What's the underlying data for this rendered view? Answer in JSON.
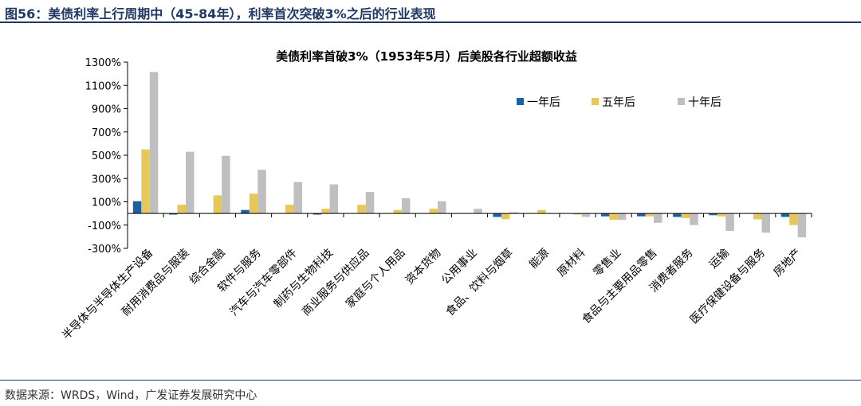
{
  "figure": {
    "title": "图56：美债利率上行周期中（45-84年），利率首次突破3%之后的行业表现",
    "source": "数据来源：WRDS，Wind，广发证券发展研究中心"
  },
  "chart_data": {
    "type": "bar",
    "title": "美债利率首破3%（1953年5月）后美股各行业超额收益",
    "xlabel": "",
    "ylabel": "",
    "ylim": [
      -300,
      1300
    ],
    "yticks": [
      1300,
      1100,
      900,
      700,
      500,
      300,
      100,
      -100,
      -300
    ],
    "ytick_labels": [
      "1300%",
      "1100%",
      "900%",
      "700%",
      "500%",
      "300%",
      "100%",
      "-100%",
      "-300%"
    ],
    "legend_position": "top-right",
    "grid": false,
    "categories": [
      "半导体与半导体生产设备",
      "耐用消费品与服装",
      "综合金融",
      "软件与服务",
      "汽车与汽车零部件",
      "制药与生物科技",
      "商业服务与供应品",
      "家庭与个人用品",
      "资本货物",
      "公用事业",
      "食品、饮料与烟草",
      "能源",
      "原材料",
      "零售业",
      "食品与主要用品零售",
      "消费者服务",
      "运输",
      "医疗保健设备与服务",
      "房地产"
    ],
    "series": [
      {
        "name": "一年后",
        "color": "#1f5fa5",
        "values": [
          105,
          -10,
          0,
          30,
          0,
          -10,
          0,
          0,
          0,
          0,
          -30,
          0,
          0,
          -25,
          -25,
          -30,
          -15,
          0,
          -30
        ]
      },
      {
        "name": "五年后",
        "color": "#e6c75a",
        "values": [
          550,
          75,
          155,
          170,
          75,
          40,
          75,
          30,
          40,
          0,
          -50,
          30,
          -10,
          -55,
          -25,
          -40,
          -25,
          -50,
          -100
        ]
      },
      {
        "name": "十年后",
        "color": "#bfbfbf",
        "values": [
          1215,
          530,
          495,
          375,
          270,
          250,
          185,
          130,
          105,
          40,
          10,
          0,
          -30,
          -55,
          -80,
          -100,
          -150,
          -165,
          -205
        ]
      }
    ]
  }
}
